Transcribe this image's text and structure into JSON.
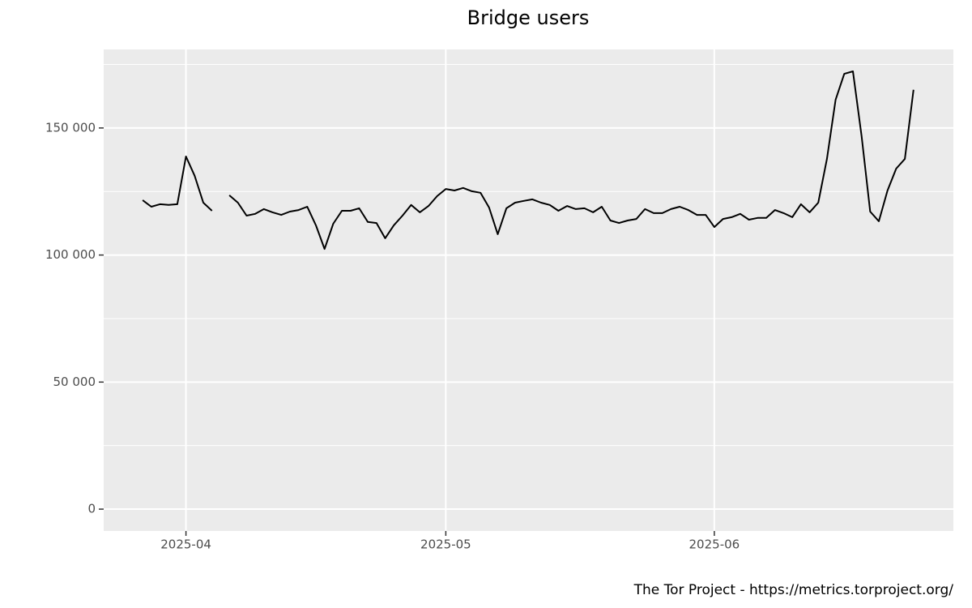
{
  "chart_data": {
    "type": "line",
    "title": "Bridge users",
    "caption": "The Tor Project - https://metrics.torproject.org/",
    "categories": [
      null,
      null,
      null,
      null,
      null,
      "2025-04",
      null,
      null,
      null,
      null,
      null,
      null,
      null,
      null,
      null,
      null,
      null,
      null,
      null,
      null,
      null,
      null,
      null,
      null,
      null,
      null,
      null,
      null,
      null,
      null,
      null,
      null,
      null,
      null,
      null,
      "2025-05",
      null,
      null,
      null,
      null,
      null,
      null,
      null,
      null,
      null,
      null,
      null,
      null,
      null,
      null,
      null,
      null,
      null,
      null,
      null,
      null,
      null,
      null,
      null,
      null,
      null,
      null,
      null,
      null,
      null,
      null,
      "2025-06",
      null,
      null,
      null,
      null,
      null,
      null,
      null,
      null,
      null,
      null,
      null,
      null,
      null,
      null,
      null,
      null,
      null,
      null,
      null,
      null,
      null,
      null,
      null
    ],
    "series": [
      {
        "name": "Bridge users",
        "color": "#000000",
        "values": [
          121600,
          119000,
          120000,
          119700,
          120000,
          138800,
          131200,
          120600,
          117400,
          null,
          123500,
          120600,
          115500,
          116200,
          118100,
          116800,
          115800,
          117100,
          117700,
          119000,
          111700,
          102400,
          112300,
          117400,
          117400,
          118400,
          113000,
          112600,
          106600,
          111700,
          115500,
          119700,
          116800,
          119300,
          123200,
          126000,
          125400,
          126400,
          125100,
          124500,
          118700,
          108200,
          118400,
          120600,
          121300,
          121900,
          120600,
          119700,
          117400,
          119300,
          118100,
          118400,
          116800,
          119000,
          113600,
          112600,
          113600,
          114200,
          118100,
          116500,
          116500,
          118100,
          119000,
          117700,
          115800,
          115800,
          111000,
          114200,
          114900,
          116200,
          113900,
          114600,
          114600,
          117700,
          116500,
          114900,
          120000,
          116800,
          120600,
          137800,
          161100,
          171300,
          172300,
          146800,
          117100,
          113300,
          125400,
          134000,
          137800,
          165000
        ]
      }
    ],
    "ylim": [
      -8600,
      180900
    ],
    "yticks": [
      {
        "value": 0,
        "label": "0"
      },
      {
        "value": 50000,
        "label": "50 000"
      },
      {
        "value": 100000,
        "label": "100 000"
      },
      {
        "value": 150000,
        "label": "150 000"
      }
    ],
    "y_minor_gridlines": [
      25000,
      75000,
      125000,
      175000
    ],
    "grid": true
  }
}
